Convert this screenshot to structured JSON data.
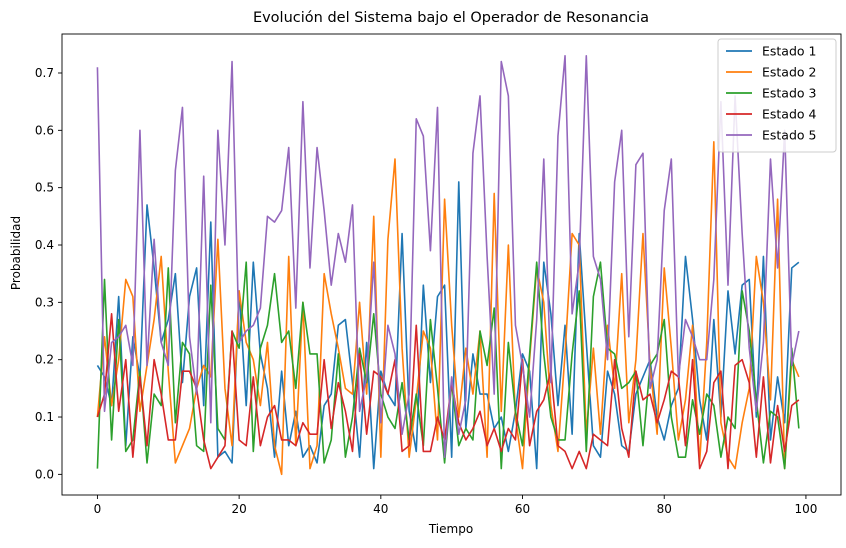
{
  "chart_data": {
    "type": "line",
    "title": "Evolución del Sistema bajo el Operador de Resonancia",
    "xlabel": "Tiempo",
    "ylabel": "Probabilidad",
    "xlim": [
      -5,
      104.95
    ],
    "ylim": [
      -0.036,
      0.768
    ],
    "xticks": [
      0,
      20,
      40,
      60,
      80,
      100
    ],
    "yticks": [
      0.0,
      0.1,
      0.2,
      0.3,
      0.4,
      0.5,
      0.6,
      0.7
    ],
    "xtick_labels": [
      "0",
      "20",
      "40",
      "60",
      "80",
      "100"
    ],
    "ytick_labels": [
      "0.0",
      "0.1",
      "0.2",
      "0.3",
      "0.4",
      "0.5",
      "0.6",
      "0.7"
    ],
    "legend_position": "top-right",
    "grid": false,
    "x": [
      0,
      1,
      2,
      3,
      4,
      5,
      6,
      7,
      8,
      9,
      10,
      11,
      12,
      13,
      14,
      15,
      16,
      17,
      18,
      19,
      20,
      21,
      22,
      23,
      24,
      25,
      26,
      27,
      28,
      29,
      30,
      31,
      32,
      33,
      34,
      35,
      36,
      37,
      38,
      39,
      40,
      41,
      42,
      43,
      44,
      45,
      46,
      47,
      48,
      49,
      50,
      51,
      52,
      53,
      54,
      55,
      56,
      57,
      58,
      59,
      60,
      61,
      62,
      63,
      64,
      65,
      66,
      67,
      68,
      69,
      70,
      71,
      72,
      73,
      74,
      75,
      76,
      77,
      78,
      79,
      80,
      81,
      82,
      83,
      84,
      85,
      86,
      87,
      88,
      89,
      90,
      91,
      92,
      93,
      94,
      95,
      96,
      97,
      98,
      99
    ],
    "series": [
      {
        "name": "Estado 1",
        "color": "#1f77b4",
        "values": [
          0.19,
          0.17,
          0.12,
          0.31,
          0.05,
          0.24,
          0.17,
          0.47,
          0.36,
          0.23,
          0.27,
          0.35,
          0.16,
          0.31,
          0.36,
          0.12,
          0.44,
          0.03,
          0.04,
          0.02,
          0.32,
          0.12,
          0.37,
          0.21,
          0.15,
          0.03,
          0.18,
          0.05,
          0.11,
          0.03,
          0.05,
          0.02,
          0.12,
          0.14,
          0.26,
          0.27,
          0.16,
          0.03,
          0.23,
          0.01,
          0.18,
          0.14,
          0.12,
          0.42,
          0.11,
          0.04,
          0.33,
          0.16,
          0.31,
          0.33,
          0.03,
          0.51,
          0.08,
          0.21,
          0.14,
          0.14,
          0.08,
          0.1,
          0.04,
          0.11,
          0.21,
          0.18,
          0.01,
          0.37,
          0.28,
          0.12,
          0.26,
          0.07,
          0.42,
          0.23,
          0.05,
          0.03,
          0.18,
          0.14,
          0.05,
          0.04,
          0.14,
          0.17,
          0.2,
          0.1,
          0.06,
          0.12,
          0.15,
          0.38,
          0.27,
          0.13,
          0.06,
          0.27,
          0.1,
          0.32,
          0.21,
          0.33,
          0.34,
          0.1,
          0.38,
          0.06,
          0.17,
          0.09,
          0.36,
          0.37
        ]
      },
      {
        "name": "Estado 2",
        "color": "#ff7f0e",
        "values": [
          0.1,
          0.24,
          0.12,
          0.2,
          0.34,
          0.31,
          0.11,
          0.19,
          0.27,
          0.38,
          0.18,
          0.02,
          0.05,
          0.08,
          0.15,
          0.19,
          0.17,
          0.41,
          0.15,
          0.05,
          0.32,
          0.23,
          0.2,
          0.12,
          0.23,
          0.05,
          0.0,
          0.38,
          0.05,
          0.3,
          0.01,
          0.05,
          0.35,
          0.28,
          0.22,
          0.15,
          0.14,
          0.3,
          0.14,
          0.45,
          0.03,
          0.41,
          0.55,
          0.22,
          0.03,
          0.13,
          0.25,
          0.22,
          0.06,
          0.48,
          0.26,
          0.1,
          0.22,
          0.14,
          0.25,
          0.03,
          0.49,
          0.11,
          0.4,
          0.1,
          0.01,
          0.2,
          0.36,
          0.3,
          0.12,
          0.04,
          0.21,
          0.42,
          0.4,
          0.07,
          0.22,
          0.07,
          0.26,
          0.15,
          0.35,
          0.09,
          0.2,
          0.42,
          0.19,
          0.07,
          0.36,
          0.22,
          0.06,
          0.13,
          0.26,
          0.02,
          0.23,
          0.58,
          0.09,
          0.03,
          0.01,
          0.09,
          0.15,
          0.38,
          0.3,
          0.13,
          0.48,
          0.01,
          0.2,
          0.17
        ]
      },
      {
        "name": "Estado 3",
        "color": "#2ca02c",
        "values": [
          0.01,
          0.34,
          0.06,
          0.27,
          0.04,
          0.06,
          0.18,
          0.02,
          0.14,
          0.12,
          0.36,
          0.09,
          0.23,
          0.21,
          0.05,
          0.04,
          0.33,
          0.08,
          0.06,
          0.25,
          0.22,
          0.37,
          0.04,
          0.22,
          0.26,
          0.35,
          0.23,
          0.25,
          0.15,
          0.3,
          0.21,
          0.21,
          0.02,
          0.06,
          0.21,
          0.03,
          0.1,
          0.22,
          0.16,
          0.28,
          0.14,
          0.1,
          0.08,
          0.16,
          0.06,
          0.14,
          0.05,
          0.27,
          0.15,
          0.02,
          0.16,
          0.05,
          0.08,
          0.06,
          0.25,
          0.19,
          0.29,
          0.01,
          0.23,
          0.11,
          0.05,
          0.21,
          0.37,
          0.21,
          0.1,
          0.06,
          0.06,
          0.21,
          0.32,
          0.04,
          0.31,
          0.37,
          0.22,
          0.21,
          0.15,
          0.16,
          0.18,
          0.05,
          0.19,
          0.21,
          0.27,
          0.1,
          0.03,
          0.03,
          0.13,
          0.07,
          0.14,
          0.12,
          0.03,
          0.1,
          0.08,
          0.32,
          0.25,
          0.13,
          0.02,
          0.11,
          0.1,
          0.01,
          0.22,
          0.08
        ]
      },
      {
        "name": "Estado 4",
        "color": "#d62728",
        "values": [
          0.1,
          0.14,
          0.28,
          0.11,
          0.2,
          0.03,
          0.17,
          0.05,
          0.2,
          0.14,
          0.06,
          0.06,
          0.18,
          0.18,
          0.15,
          0.06,
          0.01,
          0.03,
          0.05,
          0.25,
          0.06,
          0.05,
          0.17,
          0.05,
          0.1,
          0.12,
          0.06,
          0.06,
          0.05,
          0.09,
          0.07,
          0.07,
          0.2,
          0.08,
          0.16,
          0.11,
          0.04,
          0.21,
          0.07,
          0.18,
          0.17,
          0.14,
          0.2,
          0.04,
          0.05,
          0.26,
          0.04,
          0.04,
          0.1,
          0.06,
          0.16,
          0.09,
          0.06,
          0.08,
          0.11,
          0.05,
          0.08,
          0.04,
          0.08,
          0.06,
          0.2,
          0.05,
          0.11,
          0.13,
          0.18,
          0.05,
          0.04,
          0.01,
          0.04,
          0.01,
          0.07,
          0.06,
          0.05,
          0.2,
          0.08,
          0.03,
          0.18,
          0.13,
          0.14,
          0.09,
          0.13,
          0.18,
          0.17,
          0.05,
          0.2,
          0.01,
          0.04,
          0.16,
          0.18,
          0.01,
          0.19,
          0.2,
          0.16,
          0.03,
          0.17,
          0.02,
          0.12,
          0.04,
          0.12,
          0.13
        ]
      },
      {
        "name": "Estado 5",
        "color": "#9467bd",
        "values": [
          0.71,
          0.11,
          0.23,
          0.24,
          0.26,
          0.19,
          0.6,
          0.19,
          0.41,
          0.23,
          0.19,
          0.53,
          0.64,
          0.24,
          0.14,
          0.52,
          0.09,
          0.6,
          0.4,
          0.72,
          0.23,
          0.25,
          0.26,
          0.29,
          0.45,
          0.44,
          0.46,
          0.57,
          0.29,
          0.65,
          0.36,
          0.57,
          0.46,
          0.33,
          0.42,
          0.37,
          0.47,
          0.11,
          0.17,
          0.37,
          0.09,
          0.26,
          0.21,
          0.07,
          0.14,
          0.62,
          0.59,
          0.39,
          0.64,
          0.03,
          0.17,
          0.07,
          0.13,
          0.56,
          0.66,
          0.38,
          0.14,
          0.72,
          0.66,
          0.26,
          0.19,
          0.1,
          0.27,
          0.55,
          0.16,
          0.59,
          0.73,
          0.28,
          0.37,
          0.73,
          0.38,
          0.34,
          0.2,
          0.51,
          0.6,
          0.24,
          0.54,
          0.56,
          0.15,
          0.2,
          0.46,
          0.55,
          0.17,
          0.27,
          0.24,
          0.2,
          0.2,
          0.34,
          0.65,
          0.33,
          0.66,
          0.42,
          0.22,
          0.11,
          0.23,
          0.55,
          0.36,
          0.6,
          0.19,
          0.25
        ]
      }
    ]
  }
}
